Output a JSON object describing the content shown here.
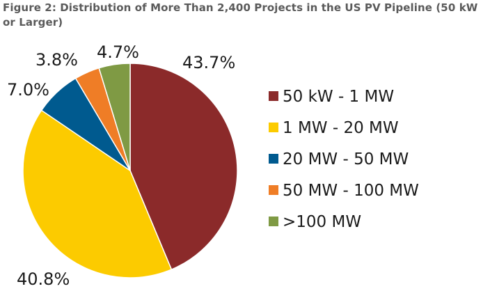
{
  "title": "Figure 2: Distribution of More Than 2,400 Projects in the US PV Pipeline (50 kW or Larger)",
  "chart_data": {
    "type": "pie",
    "title": "Figure 2: Distribution of More Than 2,400 Projects in the US PV Pipeline (50 kW or Larger)",
    "unit": "%",
    "start": "12 o'clock, clockwise",
    "legend_position": "right",
    "slices": [
      {
        "label": "50 kW - 1 MW",
        "value": 43.7,
        "display": "43.7%",
        "color": "#8b2a2a"
      },
      {
        "label": "1 MW - 20 MW",
        "value": 40.8,
        "display": "40.8%",
        "color": "#fccb00"
      },
      {
        "label": "20 MW - 50 MW",
        "value": 7.0,
        "display": "7.0%",
        "color": "#005a8f"
      },
      {
        "label": "50 MW - 100 MW",
        "value": 3.8,
        "display": "3.8%",
        "color": "#ef7d26"
      },
      {
        "label": ">100 MW",
        "value": 4.7,
        "display": "4.7%",
        "color": "#7f9a44"
      }
    ]
  }
}
